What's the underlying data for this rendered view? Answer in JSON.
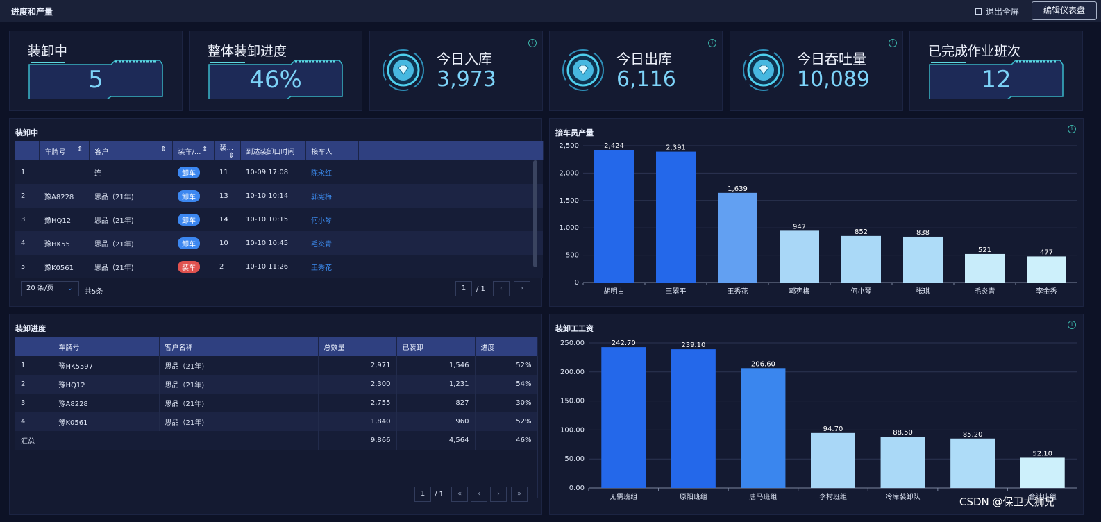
{
  "header": {
    "title": "进度和产量",
    "exit_fullscreen": "退出全屏",
    "edit_dashboard": "编辑仪表盘"
  },
  "kpis": {
    "loading": {
      "label": "装卸中",
      "value": "5"
    },
    "progress": {
      "label": "整体装卸进度",
      "value": "46%"
    },
    "inbound": {
      "label": "今日入库",
      "value": "3,973"
    },
    "outbound": {
      "label": "今日出库",
      "value": "6,116"
    },
    "throughput": {
      "label": "今日吞吐量",
      "value": "10,089"
    },
    "shifts": {
      "label": "已完成作业班次",
      "value": "12"
    }
  },
  "loading_table": {
    "title": "装卸中",
    "columns": [
      "",
      "车牌号",
      "客户",
      "装车/...",
      "装...",
      "到达装卸口时间",
      "接车人"
    ],
    "rows": [
      {
        "idx": "1",
        "plate": "",
        "customer": "连",
        "type": "卸车",
        "type_kind": "unload",
        "qty": "11",
        "time": "10-09 17:08",
        "person": "陈永红"
      },
      {
        "idx": "2",
        "plate": "豫A8228",
        "customer": "思品（21年)",
        "type": "卸车",
        "type_kind": "unload",
        "qty": "13",
        "time": "10-10 10:14",
        "person": "郭宪梅"
      },
      {
        "idx": "3",
        "plate": "豫HQ12",
        "customer": "思品（21年)",
        "type": "卸车",
        "type_kind": "unload",
        "qty": "14",
        "time": "10-10 10:15",
        "person": "何小琴"
      },
      {
        "idx": "4",
        "plate": "豫HK55",
        "customer": "思品（21年)",
        "type": "卸车",
        "type_kind": "unload",
        "qty": "10",
        "time": "10-10 10:45",
        "person": "毛炎青"
      },
      {
        "idx": "5",
        "plate": "豫K0561",
        "customer": "思品（21年)",
        "type": "装车",
        "type_kind": "load",
        "qty": "2",
        "time": "10-10 11:26",
        "person": "王秀花"
      }
    ],
    "page_size": "20 条/页",
    "total": "共5条",
    "page": "1",
    "page_total": "/ 1"
  },
  "progress_table": {
    "title": "装卸进度",
    "columns": [
      "",
      "车牌号",
      "客户名称",
      "总数量",
      "已装卸",
      "进度"
    ],
    "rows": [
      {
        "idx": "1",
        "plate": "豫HK5597",
        "customer": "思品（21年)",
        "total": "2,971",
        "done": "1,546",
        "pct": "52%"
      },
      {
        "idx": "2",
        "plate": "豫HQ12",
        "customer": "思品（21年)",
        "total": "2,300",
        "done": "1,231",
        "pct": "54%"
      },
      {
        "idx": "3",
        "plate": "豫A8228",
        "customer": "思品（21年)",
        "total": "2,755",
        "done": "827",
        "pct": "30%"
      },
      {
        "idx": "4",
        "plate": "豫K0561",
        "customer": "思品（21年)",
        "total": "1,840",
        "done": "960",
        "pct": "52%"
      }
    ],
    "summary": {
      "label": "汇总",
      "total": "9,866",
      "done": "4,564",
      "pct": "46%"
    },
    "page": "1",
    "page_total": "/ 1"
  },
  "chart_data": [
    {
      "type": "bar",
      "title": "接车员产量",
      "categories": [
        "胡明占",
        "王翠平",
        "王秀花",
        "郭宪梅",
        "何小琴",
        "张琪",
        "毛炎青",
        "李金秀"
      ],
      "values": [
        2424,
        2391,
        1639,
        947,
        852,
        838,
        521,
        477
      ],
      "labels": [
        "2,424",
        "2,391",
        "1,639",
        "947",
        "852",
        "838",
        "521",
        "477"
      ],
      "ylim": [
        0,
        2500
      ],
      "yticks": [
        "0",
        "500",
        "1,000",
        "1,500",
        "2,000",
        "2,500"
      ],
      "ytick_values": [
        0,
        500,
        1000,
        1500,
        2000,
        2500
      ],
      "colors": [
        "#2468ea",
        "#2468ea",
        "#62a0f2",
        "#a9d7f7",
        "#aad9f7",
        "#aedcf8",
        "#c8ecfa",
        "#cdf0fb"
      ]
    },
    {
      "type": "bar",
      "title": "装卸工工资",
      "categories": [
        "无需班组",
        "原阳班组",
        "唐马班组",
        "李村班组",
        "冷库装卸队",
        "",
        "合计班组"
      ],
      "values": [
        242.7,
        239.1,
        206.6,
        94.7,
        88.5,
        85.2,
        52.1
      ],
      "labels": [
        "242.70",
        "239.10",
        "206.60",
        "94.70",
        "88.50",
        "85.20",
        "52.10"
      ],
      "ylim": [
        0,
        250
      ],
      "yticks": [
        "0.00",
        "50.00",
        "100.00",
        "150.00",
        "200.00",
        "250.00"
      ],
      "ytick_values": [
        0,
        50,
        100,
        150,
        200,
        250
      ],
      "colors": [
        "#2468ea",
        "#2468ea",
        "#3a86ee",
        "#a9d7f7",
        "#aad9f7",
        "#aedcf8",
        "#cdf0fb"
      ]
    }
  ],
  "watermark": "CSDN @保卫大狮兄"
}
